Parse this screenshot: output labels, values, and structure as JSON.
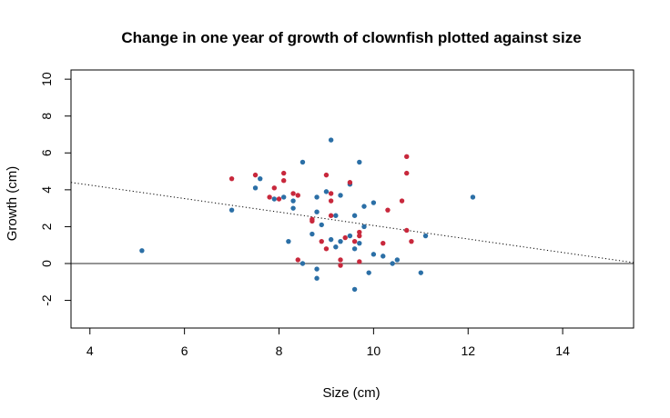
{
  "chart_data": {
    "type": "scatter",
    "title": "Change in one year of growth of clownfish plotted against size",
    "xlabel": "Size (cm)",
    "ylabel": "Growth (cm)",
    "xlim": [
      3.6,
      15.5
    ],
    "ylim": [
      -3.5,
      10.5
    ],
    "x_ticks": [
      4,
      6,
      8,
      10,
      12,
      14
    ],
    "x_tick_labels": [
      "4",
      "6",
      "8",
      "10",
      "12",
      "14"
    ],
    "y_ticks": [
      -2,
      0,
      2,
      4,
      6,
      8,
      10
    ],
    "y_tick_labels": [
      "-2",
      "0",
      "2",
      "4",
      "6",
      "8",
      "10"
    ],
    "grid": false,
    "legend": "none",
    "reference_line": {
      "y": 0,
      "color": "#555555"
    },
    "trend_line": {
      "style": "dotted",
      "points": [
        [
          3.6,
          4.4
        ],
        [
          15.5,
          0.05
        ]
      ]
    },
    "series": [
      {
        "color": "#2b6fa6",
        "points": [
          [
            5.1,
            0.7
          ],
          [
            7.0,
            2.9
          ],
          [
            7.5,
            4.1
          ],
          [
            7.6,
            4.6
          ],
          [
            7.9,
            3.5
          ],
          [
            8.1,
            3.6
          ],
          [
            8.2,
            1.2
          ],
          [
            8.3,
            3.4
          ],
          [
            8.3,
            3.0
          ],
          [
            8.5,
            5.5
          ],
          [
            8.5,
            0.0
          ],
          [
            8.7,
            1.6
          ],
          [
            8.8,
            3.6
          ],
          [
            8.8,
            2.8
          ],
          [
            8.8,
            -0.3
          ],
          [
            8.8,
            -0.8
          ],
          [
            8.9,
            2.1
          ],
          [
            9.0,
            3.9
          ],
          [
            9.1,
            6.7
          ],
          [
            9.1,
            1.3
          ],
          [
            9.2,
            2.6
          ],
          [
            9.2,
            0.9
          ],
          [
            9.3,
            3.7
          ],
          [
            9.3,
            1.2
          ],
          [
            9.5,
            4.3
          ],
          [
            9.5,
            1.5
          ],
          [
            9.6,
            2.6
          ],
          [
            9.6,
            0.8
          ],
          [
            9.6,
            -1.4
          ],
          [
            9.7,
            5.5
          ],
          [
            9.7,
            1.1
          ],
          [
            9.8,
            3.1
          ],
          [
            9.8,
            2.0
          ],
          [
            9.9,
            -0.5
          ],
          [
            10.0,
            3.3
          ],
          [
            10.0,
            0.5
          ],
          [
            10.2,
            0.4
          ],
          [
            10.4,
            0.0
          ],
          [
            10.5,
            0.2
          ],
          [
            11.0,
            -0.5
          ],
          [
            11.1,
            1.5
          ],
          [
            12.1,
            3.6
          ]
        ]
      },
      {
        "color": "#c8283c",
        "points": [
          [
            7.0,
            4.6
          ],
          [
            7.5,
            4.8
          ],
          [
            7.8,
            3.6
          ],
          [
            7.9,
            4.1
          ],
          [
            8.0,
            3.5
          ],
          [
            8.1,
            4.9
          ],
          [
            8.1,
            4.5
          ],
          [
            8.3,
            3.8
          ],
          [
            8.4,
            3.7
          ],
          [
            8.4,
            0.2
          ],
          [
            8.7,
            2.4
          ],
          [
            8.7,
            2.3
          ],
          [
            8.9,
            1.2
          ],
          [
            9.0,
            4.8
          ],
          [
            9.0,
            0.8
          ],
          [
            9.1,
            3.8
          ],
          [
            9.1,
            3.4
          ],
          [
            9.1,
            2.6
          ],
          [
            9.3,
            0.2
          ],
          [
            9.3,
            -0.1
          ],
          [
            9.4,
            1.4
          ],
          [
            9.5,
            4.4
          ],
          [
            9.6,
            1.2
          ],
          [
            9.7,
            1.7
          ],
          [
            9.7,
            1.5
          ],
          [
            9.7,
            0.1
          ],
          [
            10.2,
            1.1
          ],
          [
            10.3,
            2.9
          ],
          [
            10.6,
            3.4
          ],
          [
            10.7,
            5.8
          ],
          [
            10.7,
            4.9
          ],
          [
            10.7,
            1.8
          ],
          [
            10.8,
            1.2
          ]
        ]
      }
    ]
  }
}
